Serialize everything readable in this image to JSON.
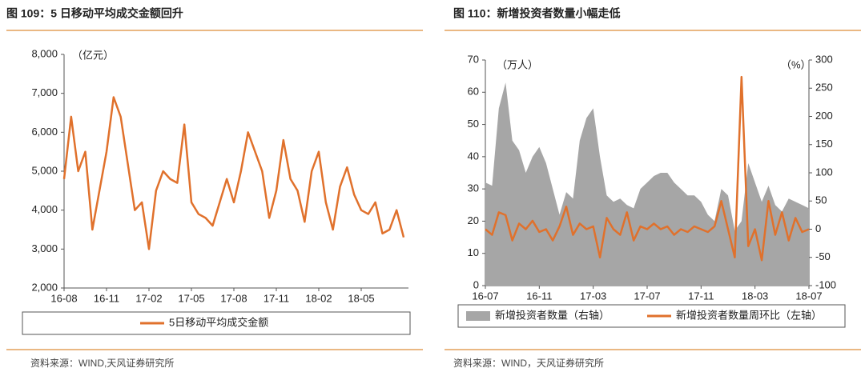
{
  "chart_data": [
    {
      "type": "line",
      "title": "图 109：5 日移动平均成交金额回升",
      "y_unit": "（亿元）",
      "source": "资料来源：WIND,天风证券研究所",
      "categories": [
        "16-08",
        null,
        null,
        null,
        null,
        null,
        "16-11",
        null,
        null,
        null,
        null,
        null,
        "17-02",
        null,
        null,
        null,
        null,
        null,
        "17-05",
        null,
        null,
        null,
        null,
        null,
        "17-08",
        null,
        null,
        null,
        null,
        null,
        "17-11",
        null,
        null,
        null,
        null,
        null,
        "18-02",
        null,
        null,
        null,
        null,
        null,
        "18-05",
        null,
        null,
        null,
        null,
        null,
        null
      ],
      "series": [
        {
          "name": "5日移动平均成交金额",
          "color": "#e0712c",
          "values": [
            4800,
            6400,
            5000,
            5500,
            3500,
            4500,
            5500,
            6900,
            6400,
            5200,
            4000,
            4200,
            3000,
            4500,
            5000,
            4800,
            4700,
            6200,
            4200,
            3900,
            3800,
            3600,
            4200,
            4800,
            4200,
            5000,
            6000,
            5500,
            5000,
            3800,
            4500,
            5800,
            4800,
            4500,
            3700,
            5000,
            5500,
            4200,
            3500,
            4600,
            5100,
            4400,
            4000,
            3900,
            4200,
            3400,
            3500,
            4000,
            3300
          ]
        }
      ],
      "ylim": [
        2000,
        8000
      ],
      "yticks": [
        {
          "value": 2000,
          "label": "2,000"
        },
        {
          "value": 3000,
          "label": "3,000"
        },
        {
          "value": 4000,
          "label": "4,000"
        },
        {
          "value": 5000,
          "label": "5,000"
        },
        {
          "value": 6000,
          "label": "6,000"
        },
        {
          "value": 7000,
          "label": "7,000"
        },
        {
          "value": 8000,
          "label": "8,000"
        }
      ],
      "grid": false
    },
    {
      "type": "combo",
      "title": "图 110：新增投资者数量小幅走低",
      "y_unit": "（万人）",
      "y2_unit": "（%）",
      "source": "资料来源：WIND，天风证券研究所",
      "categories": [
        "16-07",
        null,
        null,
        null,
        null,
        null,
        null,
        null,
        "16-11",
        null,
        null,
        null,
        null,
        null,
        null,
        null,
        "17-03",
        null,
        null,
        null,
        null,
        null,
        null,
        null,
        "17-07",
        null,
        null,
        null,
        null,
        null,
        null,
        null,
        "17-11",
        null,
        null,
        null,
        null,
        null,
        null,
        null,
        "18-03",
        null,
        null,
        null,
        null,
        null,
        null,
        null,
        "18-07"
      ],
      "series": [
        {
          "name": "新增投资者数量（右轴）",
          "type": "area",
          "color": "#a6a6a6",
          "values": [
            32,
            31,
            55,
            63,
            45,
            42,
            35,
            40,
            43,
            38,
            30,
            22,
            29,
            27,
            45,
            52,
            55,
            40,
            28,
            26,
            27,
            25,
            24,
            30,
            32,
            34,
            35,
            35,
            32,
            30,
            28,
            28,
            26,
            22,
            20,
            30,
            28,
            17,
            20,
            38,
            32,
            26,
            31,
            25,
            23,
            27,
            26,
            25,
            24
          ]
        },
        {
          "name": "新增投资者数量周环比（左轴）",
          "type": "line",
          "color": "#e0712c",
          "axis": "y2",
          "values": [
            0,
            -10,
            30,
            25,
            -20,
            10,
            0,
            15,
            -5,
            0,
            -20,
            5,
            40,
            -10,
            10,
            0,
            5,
            -50,
            20,
            0,
            -10,
            30,
            -20,
            5,
            0,
            10,
            0,
            5,
            -10,
            0,
            -5,
            5,
            0,
            -5,
            5,
            50,
            0,
            -50,
            270,
            -30,
            0,
            -55,
            50,
            -10,
            30,
            -20,
            20,
            -5,
            0
          ]
        }
      ],
      "ylim": [
        0,
        70
      ],
      "yticks": [
        0,
        10,
        20,
        30,
        40,
        50,
        60,
        70
      ],
      "y2lim": [
        -100,
        300
      ],
      "y2ticks": [
        -100,
        -50,
        0,
        50,
        100,
        150,
        200,
        250,
        300
      ],
      "grid": false
    }
  ]
}
